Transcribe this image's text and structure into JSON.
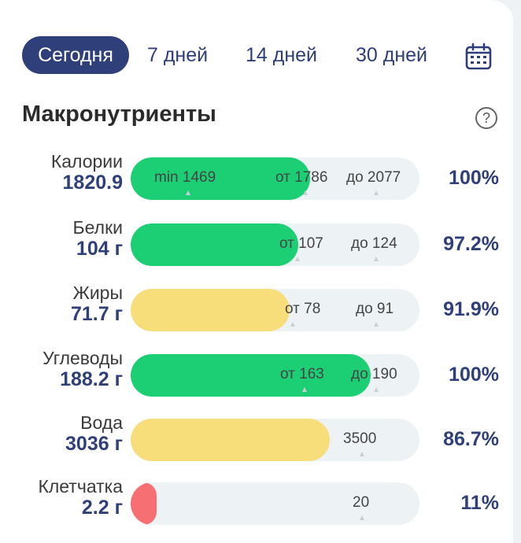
{
  "tabs": {
    "today": "Сегодня",
    "d7": "7 дней",
    "d14": "14 дней",
    "d30": "30 дней"
  },
  "section_title": "Макронутриенты",
  "help_symbol": "?",
  "colors": {
    "accent": "#2f3f79",
    "green": "#1dcf74",
    "yellow": "#f8dd7b",
    "red": "#f66f72"
  },
  "rows": [
    {
      "name": "Калории",
      "value": "1820.9",
      "percent": "100%",
      "fill_fraction": 0.62,
      "color": "green",
      "markers": [
        "min 1469",
        "от 1786",
        "до 2077"
      ]
    },
    {
      "name": "Белки",
      "value": "104 г",
      "percent": "97.2%",
      "fill_fraction": 0.58,
      "color": "green",
      "markers": [
        "от 107",
        "до 124"
      ]
    },
    {
      "name": "Жиры",
      "value": "71.7 г",
      "percent": "91.9%",
      "fill_fraction": 0.55,
      "color": "yellow",
      "markers": [
        "от 78",
        "до 91"
      ]
    },
    {
      "name": "Углеводы",
      "value": "188.2 г",
      "percent": "100%",
      "fill_fraction": 0.83,
      "color": "green",
      "markers": [
        "от 163",
        "до 190"
      ]
    },
    {
      "name": "Вода",
      "value": "3036 г",
      "percent": "86.7%",
      "fill_fraction": 0.69,
      "color": "yellow",
      "markers": [
        "3500"
      ]
    },
    {
      "name": "Клетчатка",
      "value": "2.2 г",
      "percent": "11%",
      "fill_fraction": 0.09,
      "color": "red",
      "markers": [
        "20"
      ]
    }
  ]
}
